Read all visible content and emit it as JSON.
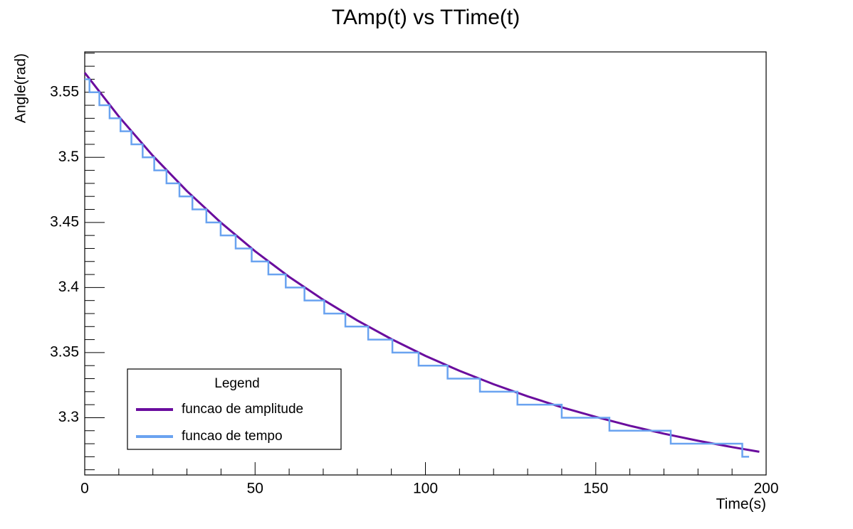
{
  "chart_data": {
    "type": "line",
    "title": "TAmp(t) vs TTime(t)",
    "x_label": "Time(s)",
    "y_label": "Angle(rad)",
    "xlim": [
      0,
      200
    ],
    "ylim": [
      3.256,
      3.581
    ],
    "xticks": [
      0,
      50,
      100,
      150,
      200
    ],
    "yticks": [
      3.3,
      3.35,
      3.4,
      3.45,
      3.5,
      3.55
    ],
    "legend_title": "Legend",
    "legend_position": "lower left",
    "series": [
      {
        "name": "funcao de amplitude",
        "color": "#6a0d9e",
        "drawstyle": "default",
        "x": [
          0,
          10,
          20,
          30,
          40,
          50,
          60,
          70,
          80,
          90,
          100,
          110,
          120,
          130,
          140,
          150,
          160,
          170,
          180,
          190,
          198
        ],
        "values": [
          3.565,
          3.5314,
          3.5012,
          3.4741,
          3.4498,
          3.4279,
          3.4082,
          3.3906,
          3.3747,
          3.3604,
          3.3475,
          3.336,
          3.3257,
          3.3164,
          3.308,
          3.3006,
          3.2938,
          3.2877,
          3.2823,
          3.2774,
          3.2738
        ]
      },
      {
        "name": "funcao de tempo",
        "color": "#6aa3f0",
        "drawstyle": "steps-post",
        "x": [
          0,
          1.4,
          4.3,
          7.3,
          10.5,
          13.7,
          17,
          20.4,
          24,
          27.8,
          31.6,
          35.7,
          39.9,
          44.3,
          49,
          53.9,
          59,
          64.5,
          70.3,
          76.5,
          83.2,
          90.3,
          98,
          106.5,
          116,
          127,
          140,
          154,
          172,
          193,
          195
        ],
        "values": [
          3.56,
          3.55,
          3.54,
          3.53,
          3.52,
          3.51,
          3.5,
          3.49,
          3.48,
          3.47,
          3.46,
          3.45,
          3.44,
          3.43,
          3.42,
          3.41,
          3.4,
          3.39,
          3.38,
          3.37,
          3.36,
          3.35,
          3.34,
          3.33,
          3.32,
          3.31,
          3.3,
          3.29,
          3.28,
          3.27,
          3.27
        ]
      }
    ]
  }
}
